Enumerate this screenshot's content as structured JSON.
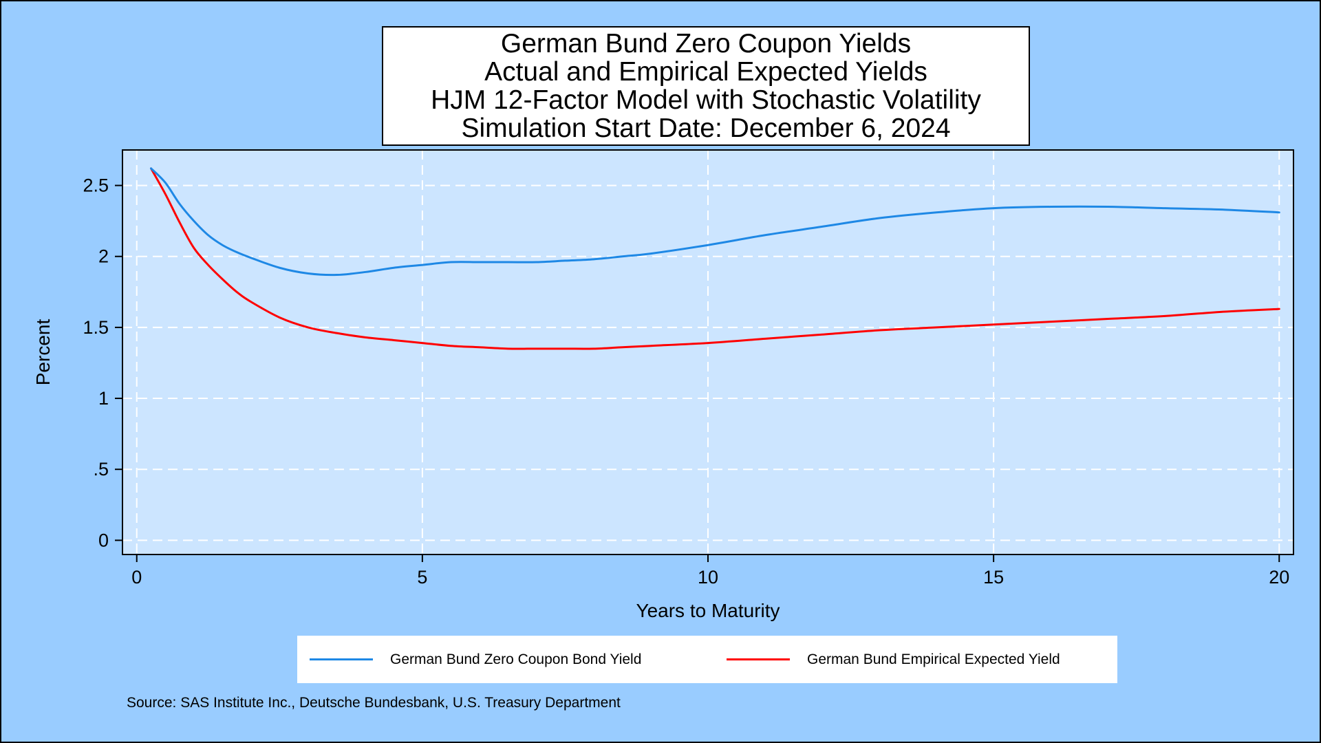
{
  "chart_data": {
    "type": "line",
    "title_lines": [
      "German Bund Zero Coupon Yields",
      "Actual and Empirical Expected Yields",
      "HJM 12-Factor Model with Stochastic Volatility",
      "Simulation Start Date: December 6, 2024"
    ],
    "xlabel": "Years to Maturity",
    "ylabel": "Percent",
    "xlim": [
      -0.25,
      20.25
    ],
    "ylim": [
      -0.1,
      2.75
    ],
    "x_ticks": [
      0,
      5,
      10,
      15,
      20
    ],
    "x_tick_labels": [
      "0",
      "5",
      "10",
      "15",
      "20"
    ],
    "y_ticks": [
      0,
      0.5,
      1,
      1.5,
      2,
      2.5
    ],
    "y_tick_labels": [
      "0",
      ".5",
      "1",
      "1.5",
      "2",
      "2.5"
    ],
    "grid": true,
    "legend_position": "bottom",
    "x": [
      0.25,
      0.5,
      0.75,
      1,
      1.25,
      1.5,
      1.75,
      2,
      2.5,
      3,
      3.5,
      4,
      4.5,
      5,
      5.5,
      6,
      6.5,
      7,
      7.5,
      8,
      8.5,
      9,
      10,
      11,
      12,
      13,
      14,
      15,
      16,
      17,
      18,
      19,
      20
    ],
    "series": [
      {
        "name": "German Bund Zero Coupon Bond Yield",
        "color": "#1e88e5",
        "values": [
          2.62,
          2.52,
          2.37,
          2.25,
          2.15,
          2.08,
          2.03,
          1.99,
          1.92,
          1.88,
          1.87,
          1.89,
          1.92,
          1.94,
          1.96,
          1.96,
          1.96,
          1.96,
          1.97,
          1.98,
          2.0,
          2.02,
          2.08,
          2.15,
          2.21,
          2.27,
          2.31,
          2.34,
          2.35,
          2.35,
          2.34,
          2.33,
          2.31
        ]
      },
      {
        "name": "German Bund Empirical Expected Yield",
        "color": "#ff0000",
        "values": [
          2.62,
          2.44,
          2.24,
          2.06,
          1.94,
          1.84,
          1.75,
          1.68,
          1.57,
          1.5,
          1.46,
          1.43,
          1.41,
          1.39,
          1.37,
          1.36,
          1.35,
          1.35,
          1.35,
          1.35,
          1.36,
          1.37,
          1.39,
          1.42,
          1.45,
          1.48,
          1.5,
          1.52,
          1.54,
          1.56,
          1.58,
          1.61,
          1.63
        ]
      }
    ],
    "source": "Source: SAS Institute Inc., Deutsche Bundesbank, U.S. Treasury Department"
  }
}
